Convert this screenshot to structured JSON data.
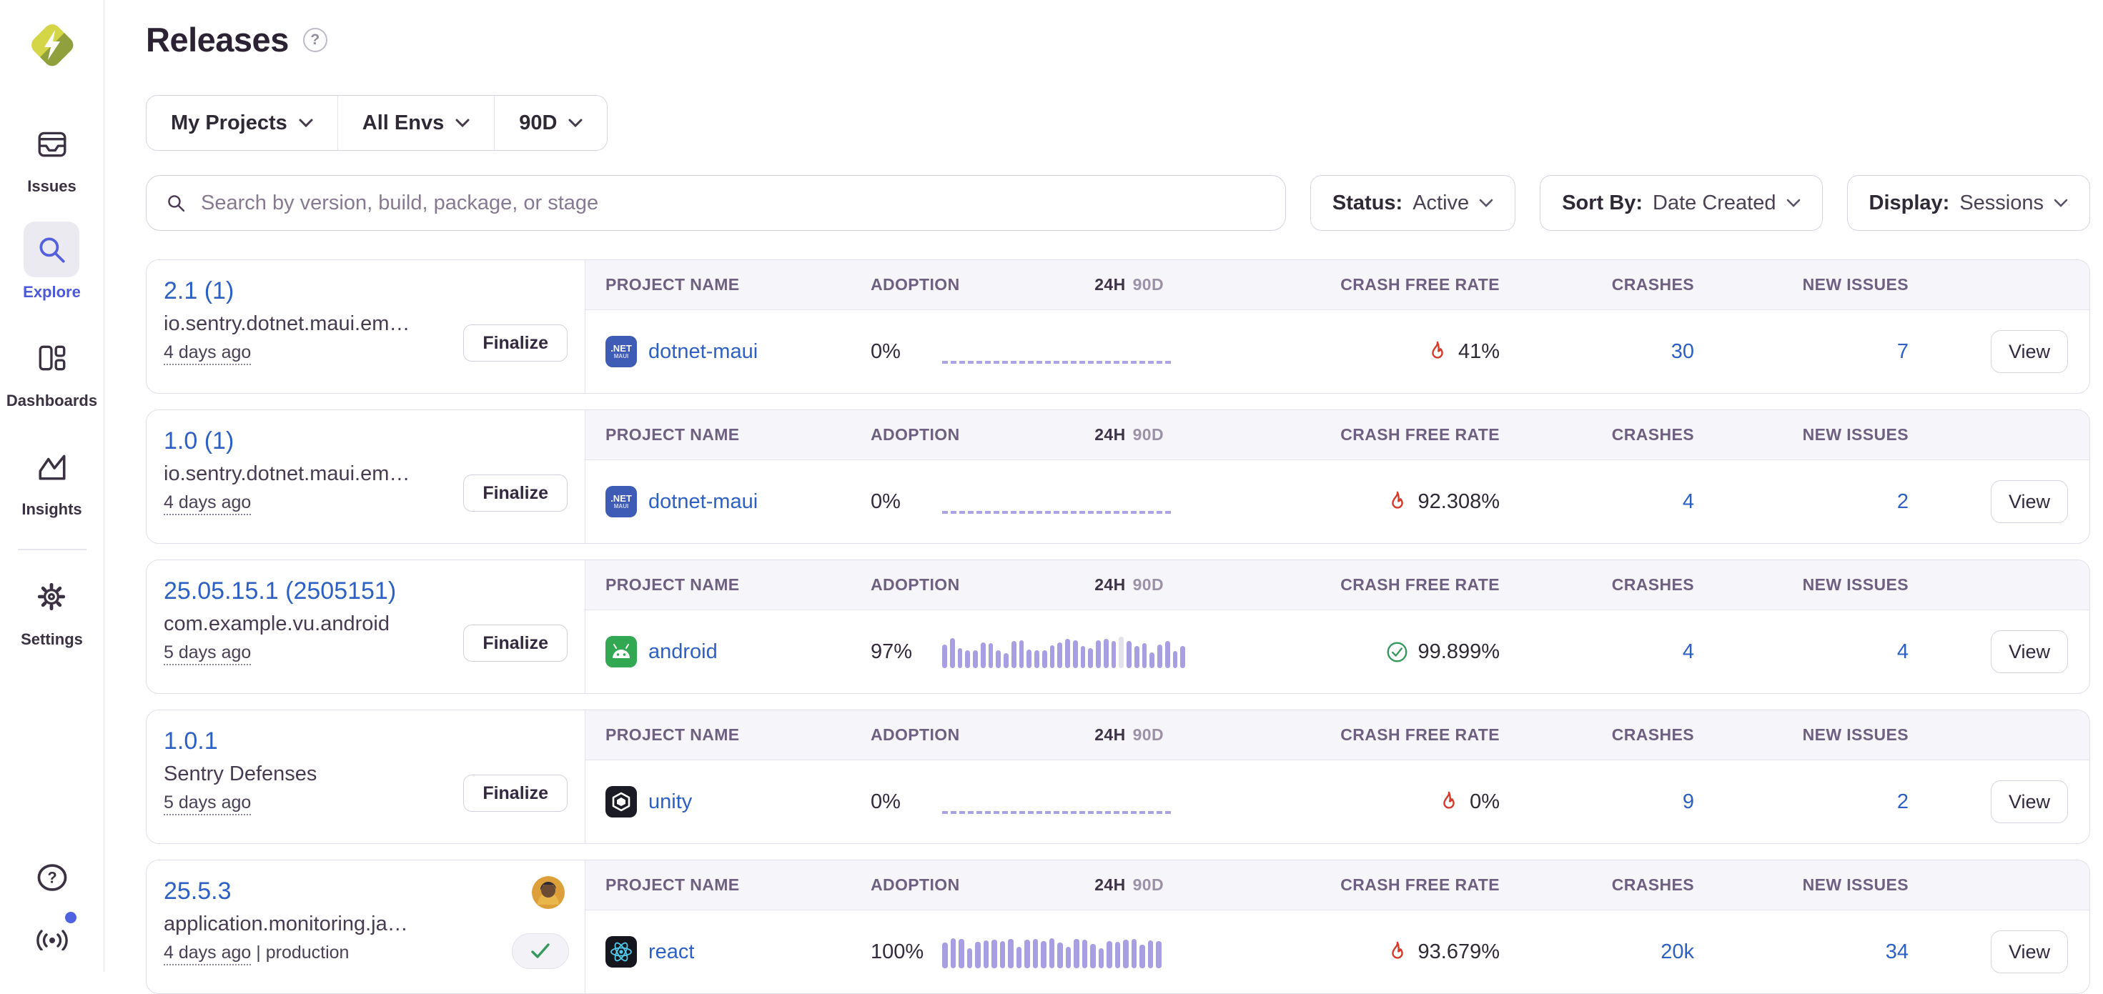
{
  "header": {
    "title": "Releases",
    "help_glyph": "?"
  },
  "sidebar": {
    "items": [
      {
        "id": "issues",
        "label": "Issues",
        "icon": "issues-icon",
        "active": false
      },
      {
        "id": "explore",
        "label": "Explore",
        "icon": "search-icon",
        "active": true
      },
      {
        "id": "dashboards",
        "label": "Dashboards",
        "icon": "dashboards-icon",
        "active": false
      },
      {
        "id": "insights",
        "label": "Insights",
        "icon": "insights-icon",
        "active": false
      },
      {
        "id": "settings",
        "label": "Settings",
        "icon": "gear-icon",
        "active": false
      }
    ],
    "help_glyph": "?",
    "footer_icons": [
      "help-icon",
      "broadcast-icon"
    ]
  },
  "filterbar": {
    "project": "My Projects",
    "environment": "All Envs",
    "date_range": "90D"
  },
  "search": {
    "placeholder": "Search by version, build, package, or stage",
    "icon": "search-icon"
  },
  "controls": {
    "status": {
      "label": "Status:",
      "value": "Active"
    },
    "sort": {
      "label": "Sort By:",
      "value": "Date Created"
    },
    "display": {
      "label": "Display:",
      "value": "Sessions"
    }
  },
  "table": {
    "headers": {
      "project": "PROJECT NAME",
      "adoption": "ADOPTION",
      "h24": "24H",
      "h90": "90D",
      "crash_free": "CRASH FREE RATE",
      "crashes": "CRASHES",
      "new_issues": "NEW ISSUES"
    }
  },
  "platform_tiles": {
    "dotnet_line1": ".NET",
    "dotnet_line2": "MAUI"
  },
  "releases": [
    {
      "version": "2.1 (1)",
      "package": "io.sentry.dotnet.maui.em…",
      "age": "4 days ago",
      "environment_label": "",
      "finalize_label": "Finalize",
      "finalized": false,
      "has_avatar": false,
      "project": {
        "name": "dotnet-maui",
        "platform": "dotnet-maui"
      },
      "adoption": "0%",
      "trend": {
        "type": "empty",
        "values": []
      },
      "crash_free": {
        "status": "fire",
        "value": "41%"
      },
      "crashes": "30",
      "new_issues": "7",
      "view_label": "View"
    },
    {
      "version": "1.0 (1)",
      "package": "io.sentry.dotnet.maui.em…",
      "age": "4 days ago",
      "environment_label": "",
      "finalize_label": "Finalize",
      "finalized": false,
      "has_avatar": false,
      "project": {
        "name": "dotnet-maui",
        "platform": "dotnet-maui"
      },
      "adoption": "0%",
      "trend": {
        "type": "empty",
        "values": []
      },
      "crash_free": {
        "status": "fire",
        "value": "92.308%"
      },
      "crashes": "4",
      "new_issues": "2",
      "view_label": "View"
    },
    {
      "version": "25.05.15.1 (2505151)",
      "package": "com.example.vu.android",
      "age": "5 days ago",
      "environment_label": "",
      "finalize_label": "Finalize",
      "finalized": false,
      "has_avatar": false,
      "project": {
        "name": "android",
        "platform": "android"
      },
      "adoption": "97%",
      "trend": {
        "type": "bars",
        "muted_index": 23,
        "values": [
          0.65,
          0.95,
          0.5,
          0.42,
          0.4,
          0.75,
          0.72,
          0.42,
          0.28,
          0.82,
          0.85,
          0.45,
          0.4,
          0.42,
          0.62,
          0.75,
          0.9,
          0.85,
          0.58,
          0.5,
          0.85,
          0.9,
          0.82,
          1.0,
          0.8,
          0.58,
          0.72,
          0.3,
          0.65,
          0.8,
          0.38,
          0.6
        ]
      },
      "crash_free": {
        "status": "check",
        "value": "99.899%"
      },
      "crashes": "4",
      "new_issues": "4",
      "view_label": "View"
    },
    {
      "version": "1.0.1",
      "package": "Sentry Defenses",
      "age": "5 days ago",
      "environment_label": "",
      "finalize_label": "Finalize",
      "finalized": false,
      "has_avatar": false,
      "project": {
        "name": "unity",
        "platform": "unity"
      },
      "adoption": "0%",
      "trend": {
        "type": "empty",
        "values": []
      },
      "crash_free": {
        "status": "fire",
        "value": "0%"
      },
      "crashes": "9",
      "new_issues": "2",
      "view_label": "View"
    },
    {
      "version": "25.5.3",
      "package": "application.monitoring.ja…",
      "age": "4 days ago",
      "environment_label": " | production",
      "finalize_label": "",
      "finalized": true,
      "has_avatar": true,
      "project": {
        "name": "react",
        "platform": "react"
      },
      "adoption": "100%",
      "trend": {
        "type": "bars",
        "muted_index": -1,
        "values": [
          0.75,
          0.95,
          0.9,
          0.5,
          0.78,
          0.85,
          0.88,
          0.82,
          0.92,
          0.55,
          0.88,
          0.9,
          0.82,
          0.95,
          0.75,
          0.55,
          0.92,
          0.88,
          0.7,
          0.5,
          0.82,
          0.78,
          0.88,
          0.92,
          0.65,
          0.85,
          0.8
        ]
      },
      "crash_free": {
        "status": "fire",
        "value": "93.679%"
      },
      "crashes": "20k",
      "new_issues": "34",
      "view_label": "View"
    }
  ],
  "colors": {
    "link_blue": "#2c60c4",
    "bar_purple": "#a79fe2",
    "fire_red": "#d63a2a",
    "success_green": "#35995c",
    "active_nav": "#4c59d8",
    "logo_light": "#d4d648",
    "logo_dark": "#8fa03c"
  }
}
